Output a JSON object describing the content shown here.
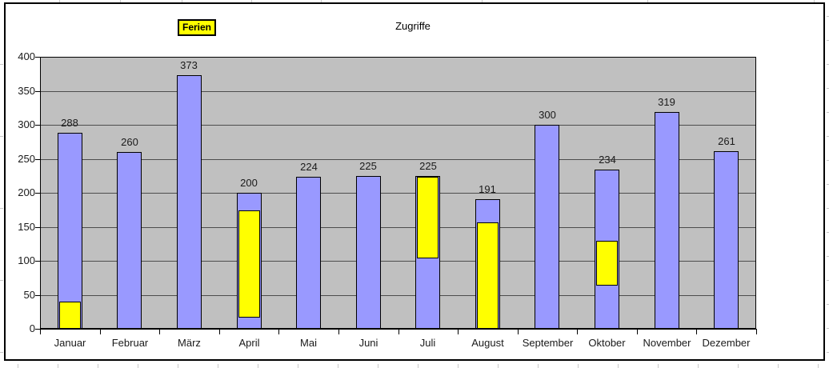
{
  "chart_data": {
    "type": "bar",
    "title": "Zugriffe",
    "categories": [
      "Januar",
      "Februar",
      "März",
      "April",
      "Mai",
      "Juni",
      "Juli",
      "August",
      "September",
      "Oktober",
      "November",
      "Dezember"
    ],
    "series": [
      {
        "name": "Zugriffe",
        "color": "#9999ff",
        "values": [
          288,
          260,
          373,
          200,
          224,
          225,
          225,
          191,
          300,
          234,
          319,
          261
        ]
      },
      {
        "name": "Ferien",
        "color": "#ffff00",
        "segments": [
          {
            "category": "Januar",
            "from": 0,
            "to": 40
          },
          {
            "category": "April",
            "from": 16,
            "to": 174
          },
          {
            "category": "Juli",
            "from": 103,
            "to": 223
          },
          {
            "category": "August",
            "from": 0,
            "to": 156
          },
          {
            "category": "Oktober",
            "from": 63,
            "to": 129
          }
        ]
      }
    ],
    "ylim": [
      0,
      400
    ],
    "yticks": [
      0,
      50,
      100,
      150,
      200,
      250,
      300,
      350,
      400
    ],
    "grid": true,
    "plot_background": "#c0c0c0",
    "value_labels": true,
    "legend_label": "Ferien",
    "legend_fill": "#ffff00",
    "legend_position": "floating-top-left"
  }
}
